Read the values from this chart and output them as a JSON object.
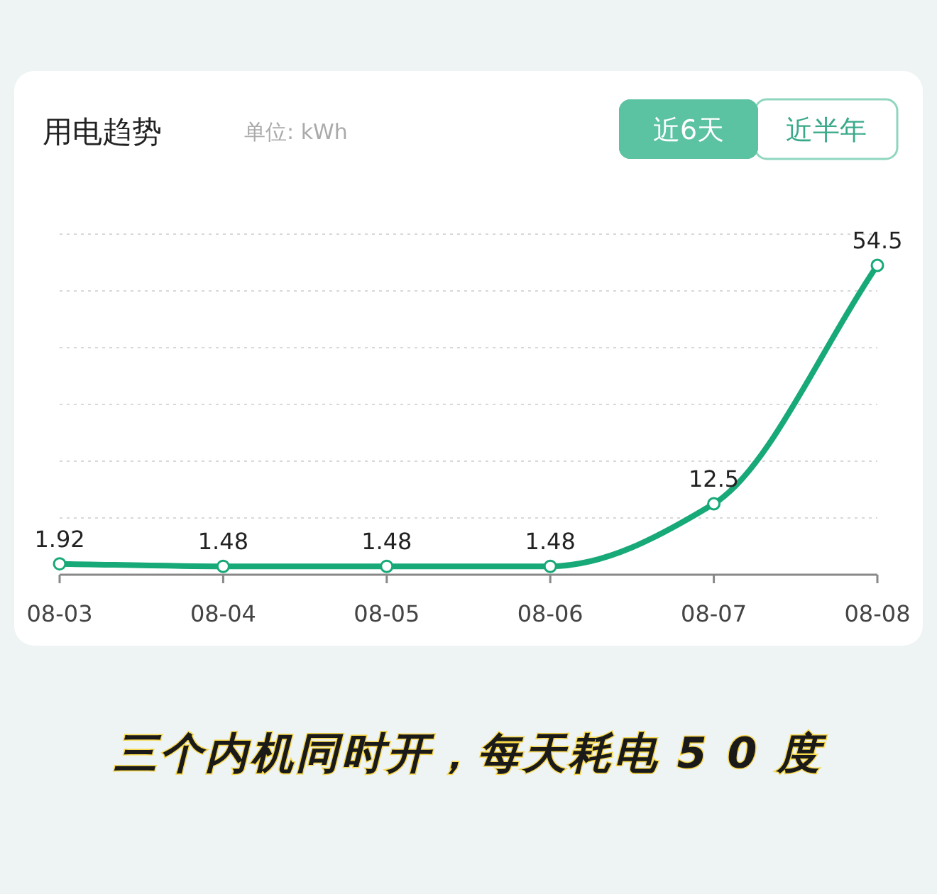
{
  "chart_data": {
    "type": "line",
    "title": "用电趋势",
    "subtitle": "单位: kWh",
    "categories": [
      "08-03",
      "08-04",
      "08-05",
      "08-06",
      "08-07",
      "08-08"
    ],
    "series": [
      {
        "color": "#17a978",
        "values": [
          1.92,
          1.48,
          1.48,
          1.48,
          12.5,
          54.5
        ]
      }
    ],
    "ylim": [
      0,
      60
    ],
    "grid": "y",
    "marker": "circle",
    "line_style": "solid",
    "data_labels": true,
    "annotations": [
      "近6天",
      "近半年",
      "三个内机同时开，每天耗电 5 0 度"
    ]
  }
}
